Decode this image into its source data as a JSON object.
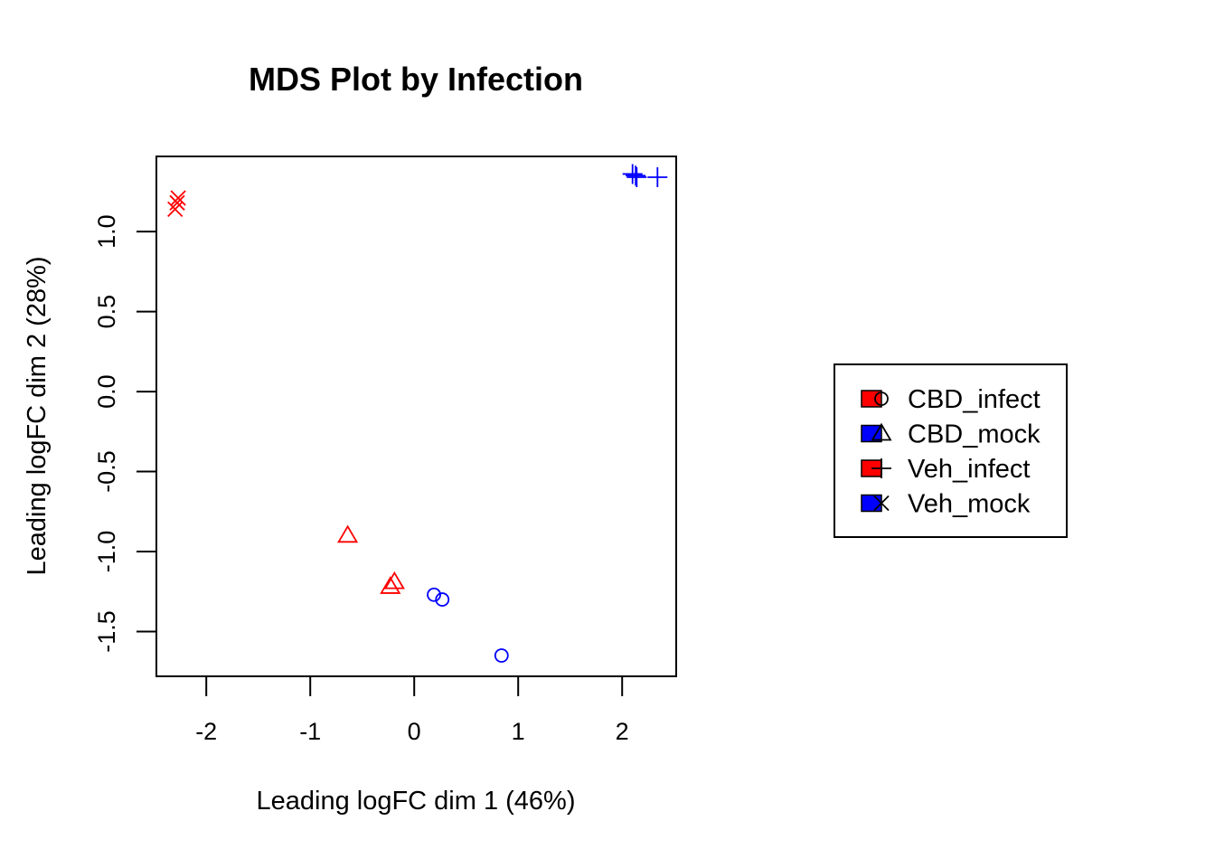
{
  "chart_data": {
    "type": "scatter",
    "title": "MDS Plot by Infection",
    "xlabel": "Leading logFC dim 1 (46%)",
    "ylabel": "Leading logFC dim 2 (28%)",
    "xlim": [
      -2.48,
      2.52
    ],
    "ylim": [
      -1.78,
      1.47
    ],
    "xticks": [
      -2,
      -1,
      0,
      1,
      2
    ],
    "xtick_labels": [
      "-2",
      "-1",
      "0",
      "1",
      "2"
    ],
    "yticks": [
      -1.5,
      -1.0,
      -0.5,
      0.0,
      0.5,
      1.0
    ],
    "ytick_labels": [
      "-1.5",
      "-1.0",
      "-0.5",
      "0.0",
      "0.5",
      "1.0"
    ],
    "grid": false,
    "legend_position": "right",
    "series": [
      {
        "name": "CBD_infect",
        "color": "#0000ff",
        "legend_fill": "#ff0000",
        "marker": "circle",
        "points": [
          [
            0.19,
            -1.27
          ],
          [
            0.27,
            -1.3
          ],
          [
            0.84,
            -1.65
          ]
        ]
      },
      {
        "name": "CBD_mock",
        "color": "#ff0000",
        "legend_fill": "#0000ff",
        "marker": "triangle",
        "points": [
          [
            -0.64,
            -0.9
          ],
          [
            -0.19,
            -1.19
          ],
          [
            -0.23,
            -1.22
          ]
        ]
      },
      {
        "name": "Veh_infect",
        "color": "#0000ff",
        "legend_fill": "#ff0000",
        "marker": "plus",
        "points": [
          [
            2.1,
            1.36
          ],
          [
            2.13,
            1.35
          ],
          [
            2.14,
            1.34
          ],
          [
            2.34,
            1.34
          ]
        ]
      },
      {
        "name": "Veh_mock",
        "color": "#ff0000",
        "legend_fill": "#0000ff",
        "marker": "cross",
        "points": [
          [
            -2.27,
            1.21
          ],
          [
            -2.28,
            1.18
          ],
          [
            -2.3,
            1.14
          ]
        ]
      }
    ]
  }
}
